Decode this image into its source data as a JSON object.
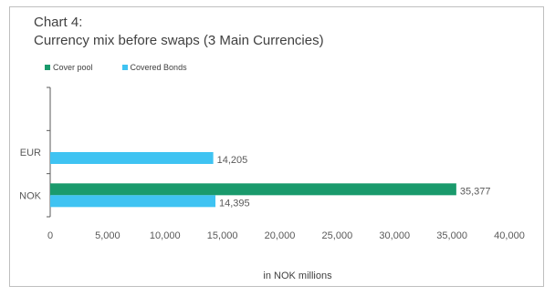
{
  "chart_title_line1": "Chart 4:",
  "chart_title_line2": "Currency mix before swaps (3 Main Currencies)",
  "legend": [
    {
      "label": "Cover pool",
      "color": "#1a9a6c"
    },
    {
      "label": "Covered Bonds",
      "color": "#3fc3f2"
    }
  ],
  "chart_data": {
    "type": "bar",
    "orientation": "horizontal",
    "title": "Chart 4: Currency mix before swaps (3 Main Currencies)",
    "categories": [
      "NOK",
      "EUR",
      ""
    ],
    "series": [
      {
        "name": "Cover pool",
        "color": "#1a9a6c",
        "values": [
          35377,
          0,
          0
        ],
        "labels": [
          "35,377",
          "",
          ""
        ]
      },
      {
        "name": "Covered Bonds",
        "color": "#3fc3f2",
        "values": [
          14395,
          14205,
          0
        ],
        "labels": [
          "14,395",
          "14,205",
          ""
        ]
      }
    ],
    "xlabel": "in NOK millions",
    "xlim": [
      0,
      40000
    ],
    "xticks": [
      0,
      5000,
      10000,
      15000,
      20000,
      25000,
      30000,
      35000,
      40000
    ],
    "xtick_labels": [
      "0",
      "5,000",
      "10,000",
      "15,000",
      "20,000",
      "25,000",
      "30,000",
      "35,000",
      "40,000"
    ],
    "grid": false,
    "legend_position": "top-left"
  }
}
